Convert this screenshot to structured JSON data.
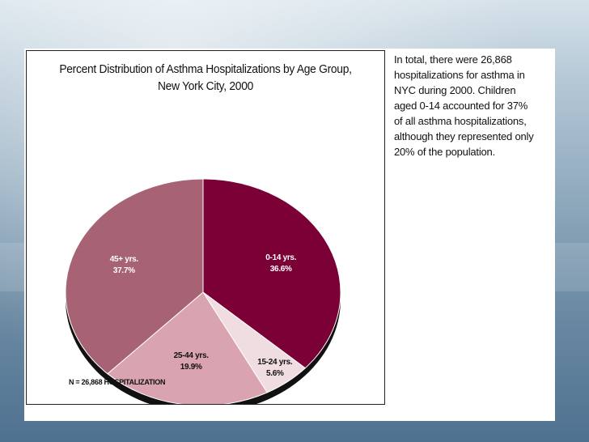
{
  "chart_data": {
    "type": "pie",
    "title": "Percent Distribution of Asthma Hospitalizations by Age Group, New York City, 2000",
    "title_lines": [
      "Percent Distribution of Asthma Hospitalizations by Age Group,",
      "New York City, 2000"
    ],
    "slices": [
      {
        "name": "0-14 yrs.",
        "value_label": "36.6%",
        "value": 36.6,
        "color": "#7a0035",
        "text_color": "#ffffff"
      },
      {
        "name": "15-24 yrs.",
        "value_label": "5.6%",
        "value": 5.6,
        "color": "#f0dde2",
        "text_color": "#111111"
      },
      {
        "name": "25-44 yrs.",
        "value_label": "19.9%",
        "value": 19.9,
        "color": "#d9a3b0",
        "text_color": "#111111"
      },
      {
        "name": "45+ yrs.",
        "value_label": "37.7%",
        "value": 37.7,
        "color": "#a76373",
        "text_color": "#ffffff"
      }
    ],
    "note": "N = 26,868 HOSPITALIZATION"
  },
  "side_text": {
    "lines": [
      "In total, there were 26,868",
      "hospitalizations for asthma in",
      "NYC during 2000.  Children",
      "aged 0-14 accounted for 37%",
      "of all asthma hospitalizations,",
      "although they represented only",
      "20% of the population."
    ]
  }
}
